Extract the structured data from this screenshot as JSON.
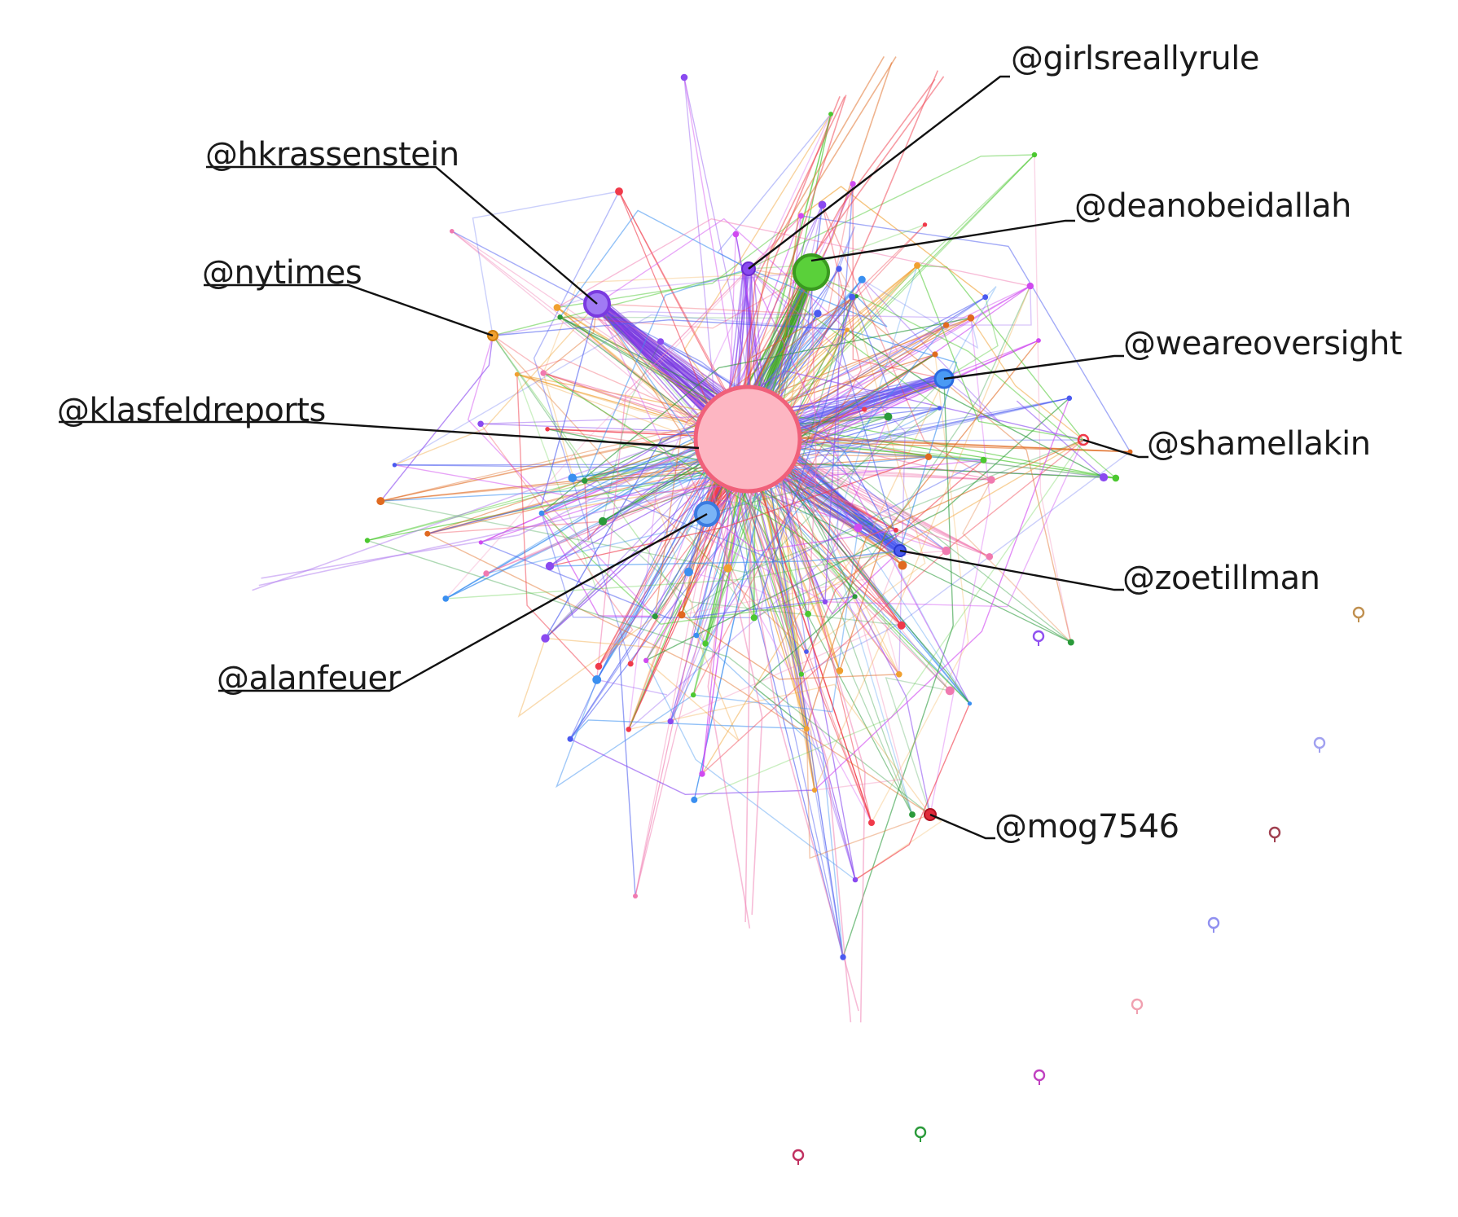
{
  "diagram": {
    "type": "network-graph",
    "labeled_accounts": [
      {
        "id": "klasfeldreports",
        "handle": "@klasfeldreports",
        "color": "#f7aab8"
      },
      {
        "id": "girlsreallyrule",
        "handle": "@girlsreallyrule",
        "color": "#8a4af0"
      },
      {
        "id": "hkrassenstein",
        "handle": "@hkrassenstein",
        "color": "#8a4af0"
      },
      {
        "id": "deanobeidallah",
        "handle": "@deanobeidallah",
        "color": "#4cc830"
      },
      {
        "id": "nytimes",
        "handle": "@nytimes",
        "color": "#f0a030"
      },
      {
        "id": "weareoversight",
        "handle": "@weareoversight",
        "color": "#3a8ff0"
      },
      {
        "id": "shamellakin",
        "handle": "@shamellakin",
        "color": "#f03a4a"
      },
      {
        "id": "zoetillman",
        "handle": "@zoetillman",
        "color": "#4a5af0"
      },
      {
        "id": "alanfeuer",
        "handle": "@alanfeuer",
        "color": "#5aa0f0"
      },
      {
        "id": "mog7546",
        "handle": "@mog7546",
        "color": "#e02a3a"
      }
    ],
    "palette": [
      "#8a4af0",
      "#4cc830",
      "#f03a4a",
      "#4a5af0",
      "#f0a030",
      "#d04af0",
      "#e06a20",
      "#3a8ff0",
      "#2a9a3a",
      "#f07ab0"
    ]
  }
}
